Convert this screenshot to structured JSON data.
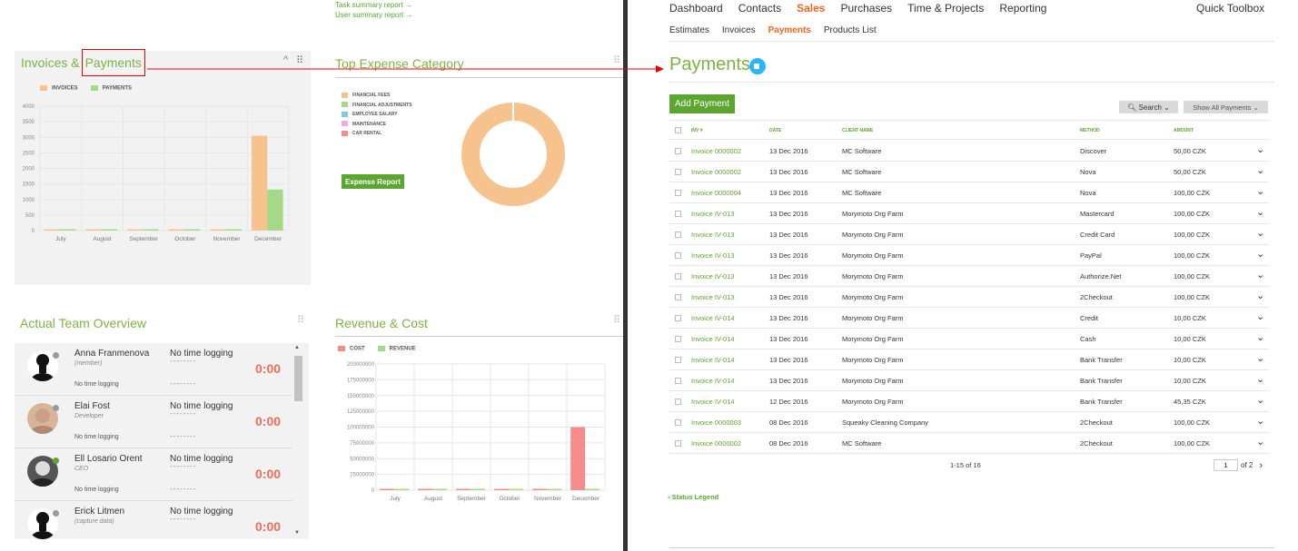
{
  "dashboard": {
    "top_links": [
      "Task summary report →",
      "User summary report →"
    ],
    "invoices_panel": {
      "title_part1": "Invoices &",
      "title_part2": "Payments",
      "legend": [
        "INVOICES",
        "PAYMENTS"
      ],
      "colors": {
        "invoices": "#f6c28e",
        "payments": "#a5d987"
      }
    },
    "expense_panel": {
      "title": "Top Expense Category",
      "legend": [
        "FINANCIAL FEES",
        "FINANCIAL ADJUSTMENTS",
        "EMPLOYEE SALARY",
        "MAINTENANCE",
        "CAR RENTAL"
      ],
      "legend_colors": [
        "#f6c28e",
        "#a5d987",
        "#81c7e8",
        "#f7a6e6",
        "#f58b8b"
      ],
      "button_label": "Expense Report"
    },
    "team_panel": {
      "title": "Actual Team Overview",
      "members": [
        {
          "name": "Anna Franmenova",
          "role": "(member)",
          "log": "No time logging",
          "dashes": "--------",
          "time": "0:00",
          "sub": "No time logging",
          "sub_dashes": "--------"
        },
        {
          "name": "Elai Fost",
          "role": "Developer",
          "log": "No time logging",
          "dashes": "--------",
          "time": "0:00",
          "sub": "No time logging",
          "sub_dashes": "--------"
        },
        {
          "name": "Ell Losario Orent",
          "role": "CEO",
          "log": "No time logging",
          "dashes": "--------",
          "time": "0:00",
          "sub": "No time logging",
          "sub_dashes": "--------"
        },
        {
          "name": "Erick Litmen",
          "role": "(capture data)",
          "log": "No time logging",
          "dashes": "--------",
          "time": "0:00",
          "sub": "",
          "sub_dashes": ""
        }
      ]
    },
    "revenue_panel": {
      "title": "Revenue & Cost",
      "legend": [
        "COST",
        "REVENUE"
      ],
      "colors": {
        "cost": "#f58b8b",
        "revenue": "#a5d987"
      }
    }
  },
  "chart_data": [
    {
      "type": "bar",
      "title": "Invoices & Payments",
      "categories": [
        "July",
        "August",
        "September",
        "October",
        "November",
        "December"
      ],
      "series": [
        {
          "name": "INVOICES",
          "values": [
            0,
            0,
            0,
            0,
            0,
            3050
          ]
        },
        {
          "name": "PAYMENTS",
          "values": [
            0,
            0,
            0,
            0,
            0,
            1320
          ]
        }
      ],
      "yticks": [
        "4000",
        "3500",
        "3000",
        "2500",
        "2000",
        "1500",
        "1000",
        "500",
        "0"
      ],
      "ylim": [
        0,
        4000
      ],
      "legend": "top-left"
    },
    {
      "type": "pie",
      "title": "Top Expense Category",
      "labels": [
        "FINANCIAL FEES",
        "FINANCIAL ADJUSTMENTS",
        "EMPLOYEE SALARY",
        "MAINTENANCE",
        "CAR RENTAL"
      ],
      "values": [
        100,
        0,
        0,
        0,
        0
      ],
      "legend": "left"
    },
    {
      "type": "bar",
      "title": "Revenue & Cost",
      "categories": [
        "July",
        "August",
        "September",
        "October",
        "November",
        "December"
      ],
      "series": [
        {
          "name": "COST",
          "values": [
            0,
            0,
            0,
            0,
            0,
            100000000
          ]
        },
        {
          "name": "REVENUE",
          "values": [
            0,
            0,
            0,
            0,
            0,
            0
          ]
        }
      ],
      "yticks": [
        "200000000",
        "175000000",
        "150000000",
        "125000000",
        "100000000",
        "75000000",
        "50000000",
        "25000000",
        "0"
      ],
      "ylim": [
        0,
        200000000
      ],
      "legend": "top-left"
    }
  ],
  "app": {
    "nav": [
      "Dashboard",
      "Contacts",
      "Sales",
      "Purchases",
      "Time & Projects",
      "Reporting"
    ],
    "nav_active": "Sales",
    "quick_toolbox": "Quick Toolbox",
    "subnav": [
      "Estimates",
      "Invoices",
      "Payments",
      "Products List"
    ],
    "subnav_active": "Payments",
    "page_title": "Payments",
    "add_payment": "Add Payment",
    "search_label": "Search",
    "show_all_label": "Show All Payments",
    "columns": [
      "INV #",
      "DATE",
      "CLIENT NAME",
      "METHOD",
      "AMOUNT"
    ],
    "rows": [
      {
        "inv": "Invoice 0000002",
        "date": "13 Dec 2016",
        "client": "MC Software",
        "method": "Discover",
        "amount": "50,00 CZK"
      },
      {
        "inv": "Invoice 0000002",
        "date": "13 Dec 2016",
        "client": "MC Software",
        "method": "Nova",
        "amount": "50,00 CZK"
      },
      {
        "inv": "Invoice 0000004",
        "date": "13 Dec 2016",
        "client": "MC Software",
        "method": "Nova",
        "amount": "100,00 CZK"
      },
      {
        "inv": "Invoice IV-013",
        "date": "13 Dec 2016",
        "client": "Morymoto Org Farm",
        "method": "Mastercard",
        "amount": "100,00 CZK"
      },
      {
        "inv": "Invoice IV-013",
        "date": "13 Dec 2016",
        "client": "Morymoto Org Farm",
        "method": "Credit Card",
        "amount": "100,00 CZK"
      },
      {
        "inv": "Invoice IV-013",
        "date": "13 Dec 2016",
        "client": "Morymoto Org Farm",
        "method": "PayPal",
        "amount": "100,00 CZK"
      },
      {
        "inv": "Invoice IV-013",
        "date": "13 Dec 2016",
        "client": "Morymoto Org Farm",
        "method": "Authorize.Net",
        "amount": "100,00 CZK"
      },
      {
        "inv": "Invoice IV-013",
        "date": "13 Dec 2016",
        "client": "Morymoto Org Farm",
        "method": "2Checkout",
        "amount": "100,00 CZK"
      },
      {
        "inv": "Invoice IV-014",
        "date": "13 Dec 2016",
        "client": "Morymoto Org Farm",
        "method": "Credit",
        "amount": "10,00 CZK"
      },
      {
        "inv": "Invoice IV-014",
        "date": "13 Dec 2016",
        "client": "Morymoto Org Farm",
        "method": "Cash",
        "amount": "10,00 CZK"
      },
      {
        "inv": "Invoice IV-014",
        "date": "13 Dec 2016",
        "client": "Morymoto Org Farm",
        "method": "Bank Transfer",
        "amount": "10,00 CZK"
      },
      {
        "inv": "Invoice IV-014",
        "date": "13 Dec 2016",
        "client": "Morymoto Org Farm",
        "method": "Bank Transfer",
        "amount": "10,00 CZK"
      },
      {
        "inv": "Invoice IV-014",
        "date": "12 Dec 2016",
        "client": "Morymoto Org Farm",
        "method": "Bank Transfer",
        "amount": "45,35 CZK"
      },
      {
        "inv": "Invoice 0000003",
        "date": "08 Dec 2016",
        "client": "Squeaky Cleaning Company",
        "method": "2Checkout",
        "amount": "100,00 CZK"
      },
      {
        "inv": "Invoice 0000002",
        "date": "08 Dec 2016",
        "client": "MC Software",
        "method": "2Checkout",
        "amount": "100,00 CZK"
      }
    ],
    "page_info": "1-15 of 16",
    "page_current": "1",
    "page_total": "of 2",
    "status_legend": "Status Legend"
  }
}
